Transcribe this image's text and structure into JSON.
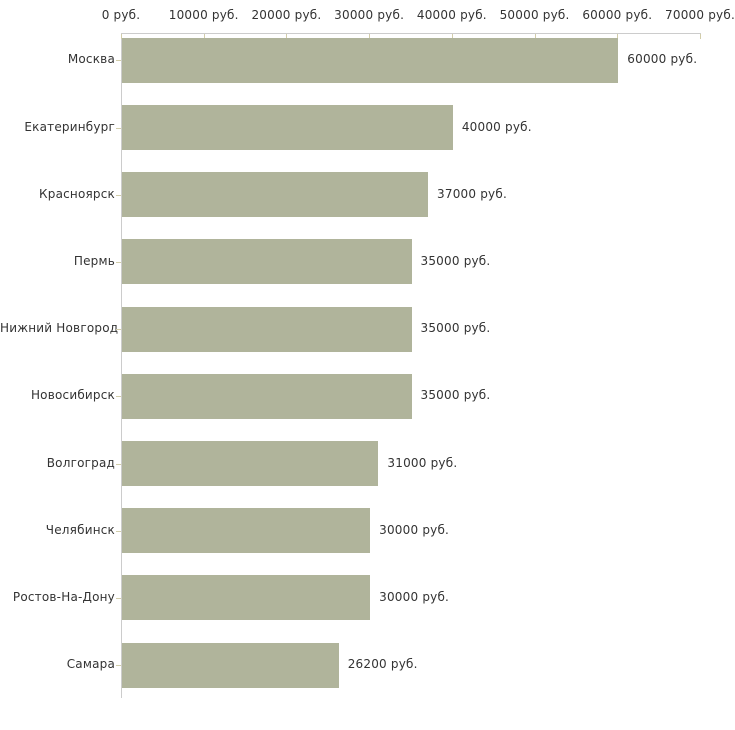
{
  "chart_data": {
    "type": "bar",
    "orientation": "horizontal",
    "title": "",
    "xlabel": "",
    "ylabel": "",
    "xlim": [
      0,
      70000
    ],
    "grid": false,
    "legend": false,
    "unit_suffix": " руб.",
    "categories": [
      "Москва",
      "Екатеринбург",
      "Красноярск",
      "Пермь",
      "Нижний Новгород",
      "Новосибирск",
      "Волгоград",
      "Челябинск",
      "Ростов-На-Дону",
      "Самара"
    ],
    "values": [
      60000,
      40000,
      37000,
      35000,
      35000,
      35000,
      31000,
      30000,
      30000,
      26200
    ],
    "value_labels": [
      "60000 руб.",
      "40000 руб.",
      "37000 руб.",
      "35000 руб.",
      "35000 руб.",
      "35000 руб.",
      "31000 руб.",
      "30000 руб.",
      "30000 руб.",
      "26200 руб."
    ],
    "x_ticks": [
      0,
      10000,
      20000,
      30000,
      40000,
      50000,
      60000,
      70000
    ],
    "x_tick_labels": [
      "0 руб.",
      "10000 руб.",
      "20000 руб.",
      "30000 руб.",
      "40000 руб.",
      "50000 руб.",
      "60000 руб.",
      "70000 руб."
    ],
    "colors": {
      "bar_fill": "#b0b49b",
      "axis_line": "#cccccc",
      "tick_mark": "#d2cdaa",
      "text": "#333333",
      "background": "#ffffff"
    }
  }
}
